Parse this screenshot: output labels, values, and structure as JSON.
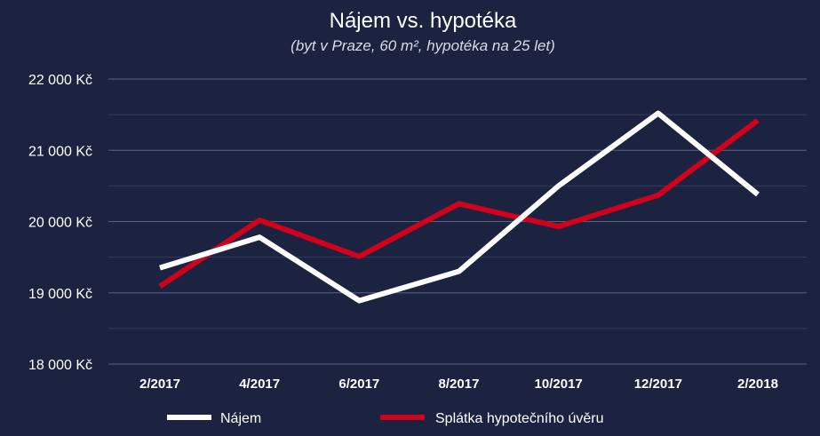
{
  "chart_data": {
    "type": "line",
    "title": "Nájem vs. hypotéka",
    "subtitle": "(byt v Praze, 60 m², hypotéka na 25 let)",
    "categories": [
      "2/2017",
      "4/2017",
      "6/2017",
      "8/2017",
      "10/2017",
      "12/2017",
      "2/2018"
    ],
    "series": [
      {
        "name": "Nájem",
        "color": "#ffffff",
        "values": [
          19350,
          19780,
          18890,
          19300,
          20500,
          21520,
          20380
        ]
      },
      {
        "name": "Splátka hypotečního úvěru",
        "color": "#d0021b",
        "values": [
          19090,
          20020,
          19510,
          20250,
          19930,
          20370,
          21420
        ]
      }
    ],
    "ylim": [
      18000,
      22000
    ],
    "yticks": [
      18000,
      19000,
      20000,
      21000,
      22000
    ],
    "ytick_labels": [
      "18 000 Kč",
      "19 000 Kč",
      "20 000 Kč",
      "21 000 Kč",
      "22 000 Kč"
    ],
    "grid": true,
    "legend_position": "bottom",
    "background": "#1c2340"
  }
}
